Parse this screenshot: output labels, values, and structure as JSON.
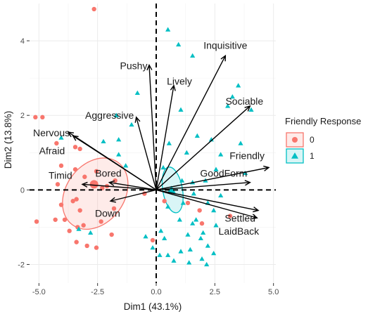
{
  "chart_data": {
    "type": "scatter",
    "subtype": "pca-biplot",
    "xlabel": "Dim1 (43.1%)",
    "ylabel": "Dim2 (13.8%)",
    "xlim": [
      -5.4,
      5.1
    ],
    "ylim": [
      -2.5,
      5.0
    ],
    "x_ticks": [
      -5,
      -2.5,
      0,
      2.5,
      5
    ],
    "x_tick_labels": [
      "-5.0",
      "-2.5",
      "0.0",
      "2.5",
      "5.0"
    ],
    "y_ticks": [
      -2,
      0,
      2,
      4
    ],
    "y_tick_labels": [
      "-2",
      "0",
      "2",
      "4"
    ],
    "grid": true,
    "legend": {
      "title": "Friendly Response",
      "position": "right",
      "entries": [
        {
          "label": "0",
          "color": "#F8766D",
          "shape": "circle"
        },
        {
          "label": "1",
          "color": "#00BFC4",
          "shape": "triangle"
        }
      ]
    },
    "variables": [
      {
        "name": "Inquisitive",
        "x": 2.95,
        "y": 3.6
      },
      {
        "name": "Pushy",
        "x": -0.3,
        "y": 3.35
      },
      {
        "name": "Lively",
        "x": 0.75,
        "y": 2.8
      },
      {
        "name": "Sociable",
        "x": 4.0,
        "y": 2.25
      },
      {
        "name": "Aggressive",
        "x": -0.85,
        "y": 1.95
      },
      {
        "name": "Nervous",
        "x": -3.75,
        "y": 1.55
      },
      {
        "name": "Afraid",
        "x": -3.55,
        "y": 1.45
      },
      {
        "name": "Friendly",
        "x": 4.8,
        "y": 0.6
      },
      {
        "name": "GoodForm",
        "x": 4.0,
        "y": 0.2
      },
      {
        "name": "Timid",
        "x": -3.15,
        "y": 0.15
      },
      {
        "name": "Bored",
        "x": -2.0,
        "y": 0.2
      },
      {
        "name": "Down",
        "x": -1.95,
        "y": -0.3
      },
      {
        "name": "Settled",
        "x": 4.35,
        "y": -0.55
      },
      {
        "name": "LaidBack",
        "x": 4.3,
        "y": -0.75
      }
    ],
    "series": [
      {
        "name": "0",
        "color": "#F8766D",
        "shape": "circle",
        "centroid": [
          -2.65,
          0.15
        ],
        "points": [
          [
            -2.65,
            4.85
          ],
          [
            -5.15,
            1.95
          ],
          [
            -4.85,
            1.95
          ],
          [
            -4.25,
            1.25
          ],
          [
            -3.45,
            1.15
          ],
          [
            -3.25,
            1.1
          ],
          [
            -4.05,
            0.65
          ],
          [
            -3.45,
            0.55
          ],
          [
            -2.55,
            0.5
          ],
          [
            -1.75,
            0.25
          ],
          [
            -4.2,
            0.15
          ],
          [
            -3.05,
            0.35
          ],
          [
            -2.3,
            0.05
          ],
          [
            -2.1,
            0.1
          ],
          [
            -3.55,
            -0.3
          ],
          [
            -4.05,
            -0.4
          ],
          [
            -3.4,
            -0.25
          ],
          [
            -3.25,
            -0.55
          ],
          [
            -5.1,
            -0.85
          ],
          [
            -4.3,
            -0.8
          ],
          [
            -3.9,
            -0.8
          ],
          [
            -3.35,
            -1.0
          ],
          [
            -3.1,
            -0.95
          ],
          [
            -2.35,
            -0.85
          ],
          [
            -3.4,
            -1.4
          ],
          [
            -3.7,
            -1.1
          ],
          [
            -2.95,
            -1.5
          ],
          [
            -2.55,
            -1.55
          ],
          [
            -1.8,
            -0.5
          ],
          [
            1.85,
            -0.55
          ],
          [
            1.95,
            -0.9
          ],
          [
            3.15,
            -0.7
          ],
          [
            1.35,
            -0.35
          ],
          [
            0.35,
            -0.3
          ],
          [
            -0.5,
            -0.1
          ],
          [
            -1.9,
            -1.2
          ],
          [
            -0.15,
            -1.35
          ]
        ]
      },
      {
        "name": "1",
        "color": "#00BFC4",
        "shape": "triangle",
        "centroid": [
          0.65,
          0.0
        ],
        "points": [
          [
            0.5,
            4.3
          ],
          [
            0.95,
            3.9
          ],
          [
            1.55,
            3.6
          ],
          [
            3.5,
            2.8
          ],
          [
            -0.8,
            2.6
          ],
          [
            1.05,
            2.15
          ],
          [
            3.25,
            2.5
          ],
          [
            3.05,
            2.25
          ],
          [
            4.05,
            2.15
          ],
          [
            -1.7,
            2.0
          ],
          [
            -1.05,
            1.75
          ],
          [
            1.75,
            1.45
          ],
          [
            -1.6,
            1.35
          ],
          [
            0.55,
            1.25
          ],
          [
            2.35,
            1.35
          ],
          [
            3.6,
            1.25
          ],
          [
            -4.05,
            1.4
          ],
          [
            -2.25,
            1.3
          ],
          [
            1.3,
            1.0
          ],
          [
            -1.6,
            0.95
          ],
          [
            2.75,
            0.95
          ],
          [
            -1.3,
            0.65
          ],
          [
            0.3,
            0.6
          ],
          [
            2.55,
            0.55
          ],
          [
            3.8,
            0.45
          ],
          [
            1.1,
            0.25
          ],
          [
            1.55,
            0.2
          ],
          [
            2.1,
            0.25
          ],
          [
            1.6,
            -0.1
          ],
          [
            2.75,
            -0.15
          ],
          [
            0.5,
            -0.45
          ],
          [
            1.15,
            -0.35
          ],
          [
            2.2,
            -0.35
          ],
          [
            2.45,
            -0.55
          ],
          [
            1.0,
            -0.8
          ],
          [
            1.55,
            -0.9
          ],
          [
            2.55,
            -0.95
          ],
          [
            1.35,
            -1.2
          ],
          [
            -3.3,
            -1.05
          ],
          [
            -2.8,
            -1.15
          ],
          [
            -0.45,
            -1.25
          ],
          [
            -0.15,
            -1.55
          ],
          [
            0.35,
            -1.3
          ],
          [
            1.9,
            -1.3
          ],
          [
            2.2,
            -1.5
          ],
          [
            1.05,
            -1.65
          ],
          [
            1.45,
            -1.6
          ],
          [
            2.45,
            -1.7
          ],
          [
            0.75,
            -1.9
          ],
          [
            1.4,
            -1.95
          ],
          [
            1.95,
            -1.85
          ],
          [
            2.15,
            -2.0
          ],
          [
            0.15,
            -1.75
          ],
          [
            0.5,
            -1.75
          ],
          [
            1.7,
            -0.8
          ],
          [
            0.2,
            -1.1
          ],
          [
            2.0,
            -1.15
          ]
        ]
      }
    ],
    "ellipses": [
      {
        "group": "0",
        "cx": -2.6,
        "cy": -0.1,
        "rx": 1.65,
        "ry": 0.78,
        "angle_deg": 54,
        "color": "#F8766D"
      },
      {
        "group": "1",
        "cx": 0.7,
        "cy": 0.0,
        "rx": 0.42,
        "ry": 0.62,
        "angle_deg": 10,
        "color": "#00BFC4"
      }
    ]
  }
}
